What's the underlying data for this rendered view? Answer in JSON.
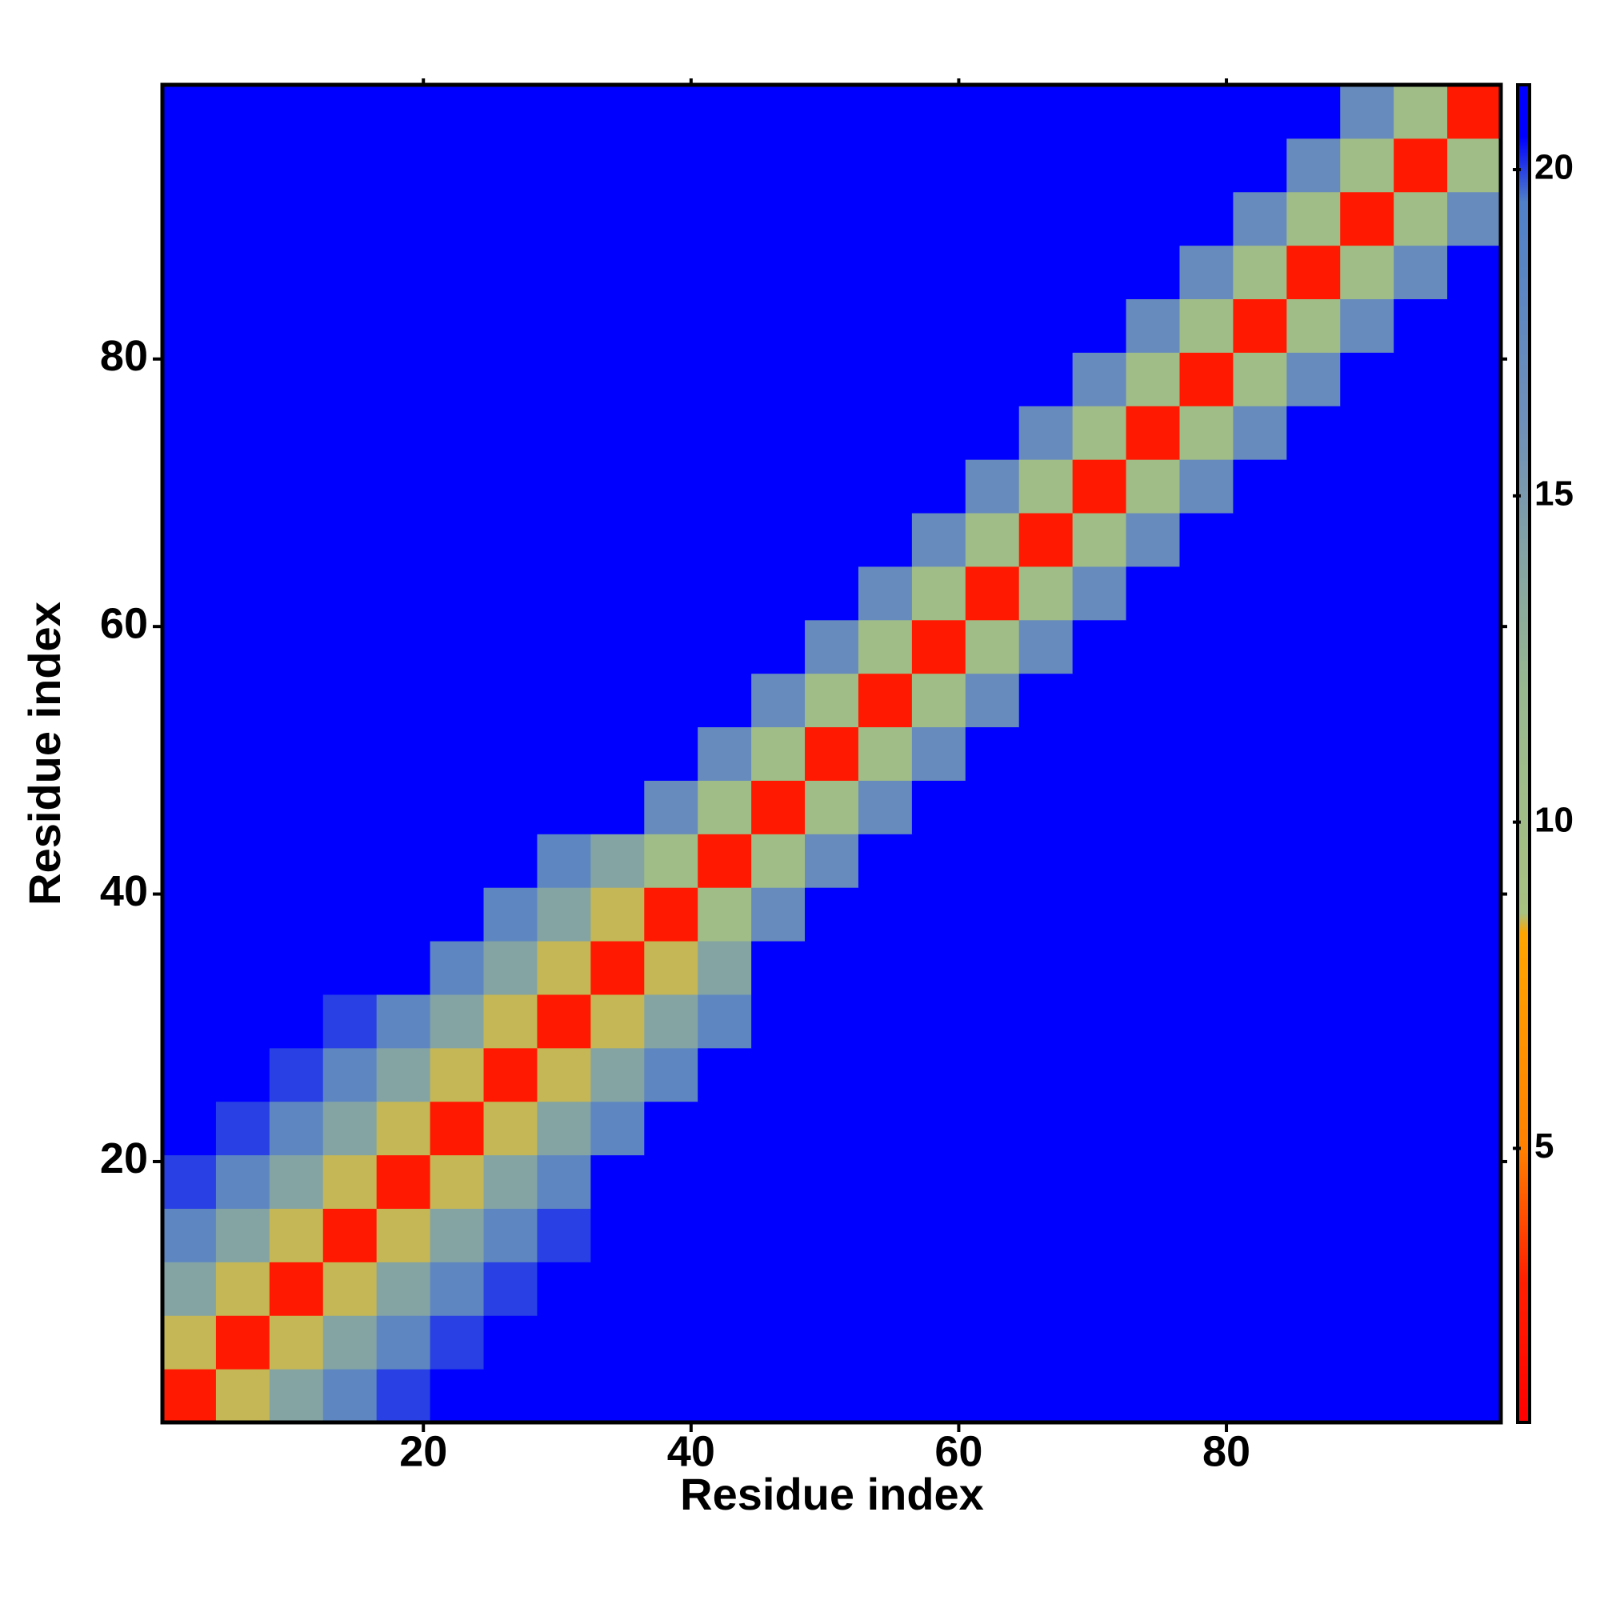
{
  "chart_data": {
    "type": "heatmap",
    "x_label": "Residue index",
    "y_label": "Residue index",
    "x": [
      2.5,
      6.5,
      10.5,
      14.5,
      18.5,
      22.5,
      26.5,
      30.5,
      34.5,
      38.5,
      42.5,
      46.5,
      50.5,
      54.5,
      58.5,
      62.5,
      66.5,
      70.5,
      74.5,
      78.5,
      82.5,
      86.5,
      90.5,
      94.5,
      98.5
    ],
    "y": [
      2.5,
      6.5,
      10.5,
      14.5,
      18.5,
      22.5,
      26.5,
      30.5,
      34.5,
      38.5,
      42.5,
      46.5,
      50.5,
      54.5,
      58.5,
      62.5,
      66.5,
      70.5,
      74.5,
      78.5,
      82.5,
      86.5,
      90.5,
      94.5,
      98.5
    ],
    "xlim": [
      0.5,
      100.5
    ],
    "ylim": [
      0.5,
      100.5
    ],
    "xticks": [
      20,
      40,
      60,
      80
    ],
    "yticks": [
      20,
      40,
      60,
      80
    ],
    "zlim": [
      0.8,
      21.3
    ],
    "zticks": [
      5,
      10,
      15,
      20
    ],
    "colorscale": [
      [
        0.8,
        "#ff0000"
      ],
      [
        3,
        "#ff2000"
      ],
      [
        5,
        "#ff8000"
      ],
      [
        8.3,
        "#ffa500"
      ],
      [
        8.6,
        "#a8c080"
      ],
      [
        12,
        "#98b890"
      ],
      [
        16,
        "#7090b8"
      ],
      [
        19.5,
        "#5080c8"
      ],
      [
        20.5,
        "#0000ff"
      ],
      [
        21.3,
        "#0000ff"
      ]
    ],
    "z": [
      [
        2.5,
        8.5,
        14,
        18,
        20,
        21,
        21,
        21,
        21,
        21,
        21,
        21,
        21,
        21,
        21,
        21,
        21,
        21,
        21,
        21,
        21,
        21,
        21,
        21,
        21
      ],
      [
        8.5,
        2.5,
        8.5,
        14,
        18,
        20,
        21,
        21,
        21,
        21,
        21,
        21,
        21,
        21,
        21,
        21,
        21,
        21,
        21,
        21,
        21,
        21,
        21,
        21,
        21
      ],
      [
        14,
        8.5,
        2.5,
        8.5,
        14,
        18,
        20,
        21,
        21,
        21,
        21,
        21,
        21,
        21,
        21,
        21,
        21,
        21,
        21,
        21,
        21,
        21,
        21,
        21,
        21
      ],
      [
        18,
        14,
        8.5,
        2.5,
        8.5,
        14,
        18,
        20,
        21,
        21,
        21,
        21,
        21,
        21,
        21,
        21,
        21,
        21,
        21,
        21,
        21,
        21,
        21,
        21,
        21
      ],
      [
        20,
        18,
        14,
        8.5,
        2.5,
        8.5,
        14,
        18,
        21,
        21,
        21,
        21,
        21,
        21,
        21,
        21,
        21,
        21,
        21,
        21,
        21,
        21,
        21,
        21,
        21
      ],
      [
        21,
        20,
        18,
        14,
        8.5,
        2.5,
        8.5,
        14,
        18,
        21,
        21,
        21,
        21,
        21,
        21,
        21,
        21,
        21,
        21,
        21,
        21,
        21,
        21,
        21,
        21
      ],
      [
        21,
        21,
        20,
        18,
        14,
        8.5,
        2.5,
        8.5,
        14,
        18,
        21,
        21,
        21,
        21,
        21,
        21,
        21,
        21,
        21,
        21,
        21,
        21,
        21,
        21,
        21
      ],
      [
        21,
        21,
        21,
        20,
        18,
        14,
        8.5,
        2.5,
        8.5,
        14,
        18,
        21,
        21,
        21,
        21,
        21,
        21,
        21,
        21,
        21,
        21,
        21,
        21,
        21,
        21
      ],
      [
        21,
        21,
        21,
        21,
        21,
        18,
        14,
        8.5,
        2.5,
        8.5,
        14,
        21,
        21,
        21,
        21,
        21,
        21,
        21,
        21,
        21,
        21,
        21,
        21,
        21,
        21
      ],
      [
        21,
        21,
        21,
        21,
        21,
        21,
        18,
        14,
        8.5,
        2.5,
        10,
        17,
        21,
        21,
        21,
        21,
        21,
        21,
        21,
        21,
        21,
        21,
        21,
        21,
        21
      ],
      [
        21,
        21,
        21,
        21,
        21,
        21,
        21,
        18,
        14,
        10,
        2.5,
        10,
        17,
        21,
        21,
        21,
        21,
        21,
        21,
        21,
        21,
        21,
        21,
        21,
        21
      ],
      [
        21,
        21,
        21,
        21,
        21,
        21,
        21,
        21,
        21,
        17,
        10,
        2.5,
        10,
        17,
        21,
        21,
        21,
        21,
        21,
        21,
        21,
        21,
        21,
        21,
        21
      ],
      [
        21,
        21,
        21,
        21,
        21,
        21,
        21,
        21,
        21,
        21,
        17,
        10,
        2.5,
        10,
        17,
        21,
        21,
        21,
        21,
        21,
        21,
        21,
        21,
        21,
        21
      ],
      [
        21,
        21,
        21,
        21,
        21,
        21,
        21,
        21,
        21,
        21,
        21,
        17,
        10,
        2.5,
        10,
        17,
        21,
        21,
        21,
        21,
        21,
        21,
        21,
        21,
        21
      ],
      [
        21,
        21,
        21,
        21,
        21,
        21,
        21,
        21,
        21,
        21,
        21,
        21,
        17,
        10,
        2.5,
        10,
        17,
        21,
        21,
        21,
        21,
        21,
        21,
        21,
        21
      ],
      [
        21,
        21,
        21,
        21,
        21,
        21,
        21,
        21,
        21,
        21,
        21,
        21,
        21,
        17,
        10,
        2.5,
        10,
        17,
        21,
        21,
        21,
        21,
        21,
        21,
        21
      ],
      [
        21,
        21,
        21,
        21,
        21,
        21,
        21,
        21,
        21,
        21,
        21,
        21,
        21,
        21,
        17,
        10,
        2.5,
        10,
        17,
        21,
        21,
        21,
        21,
        21,
        21
      ],
      [
        21,
        21,
        21,
        21,
        21,
        21,
        21,
        21,
        21,
        21,
        21,
        21,
        21,
        21,
        21,
        17,
        10,
        2.5,
        10,
        17,
        21,
        21,
        21,
        21,
        21
      ],
      [
        21,
        21,
        21,
        21,
        21,
        21,
        21,
        21,
        21,
        21,
        21,
        21,
        21,
        21,
        21,
        21,
        17,
        10,
        2.5,
        10,
        17,
        21,
        21,
        21,
        21
      ],
      [
        21,
        21,
        21,
        21,
        21,
        21,
        21,
        21,
        21,
        21,
        21,
        21,
        21,
        21,
        21,
        21,
        21,
        17,
        10,
        2.5,
        10,
        17,
        21,
        21,
        21
      ],
      [
        21,
        21,
        21,
        21,
        21,
        21,
        21,
        21,
        21,
        21,
        21,
        21,
        21,
        21,
        21,
        21,
        21,
        21,
        17,
        10,
        2.5,
        10,
        17,
        21,
        21
      ],
      [
        21,
        21,
        21,
        21,
        21,
        21,
        21,
        21,
        21,
        21,
        21,
        21,
        21,
        21,
        21,
        21,
        21,
        21,
        21,
        17,
        10,
        2.5,
        10,
        17,
        21
      ],
      [
        21,
        21,
        21,
        21,
        21,
        21,
        21,
        21,
        21,
        21,
        21,
        21,
        21,
        21,
        21,
        21,
        21,
        21,
        21,
        21,
        17,
        10,
        2.5,
        10,
        17
      ],
      [
        21,
        21,
        21,
        21,
        21,
        21,
        21,
        21,
        21,
        21,
        21,
        21,
        21,
        21,
        21,
        21,
        21,
        21,
        21,
        21,
        21,
        17,
        10,
        2.5,
        10
      ],
      [
        21,
        21,
        21,
        21,
        21,
        21,
        21,
        21,
        21,
        21,
        21,
        21,
        21,
        21,
        21,
        21,
        21,
        21,
        21,
        21,
        21,
        21,
        17,
        10,
        2.5
      ]
    ]
  }
}
